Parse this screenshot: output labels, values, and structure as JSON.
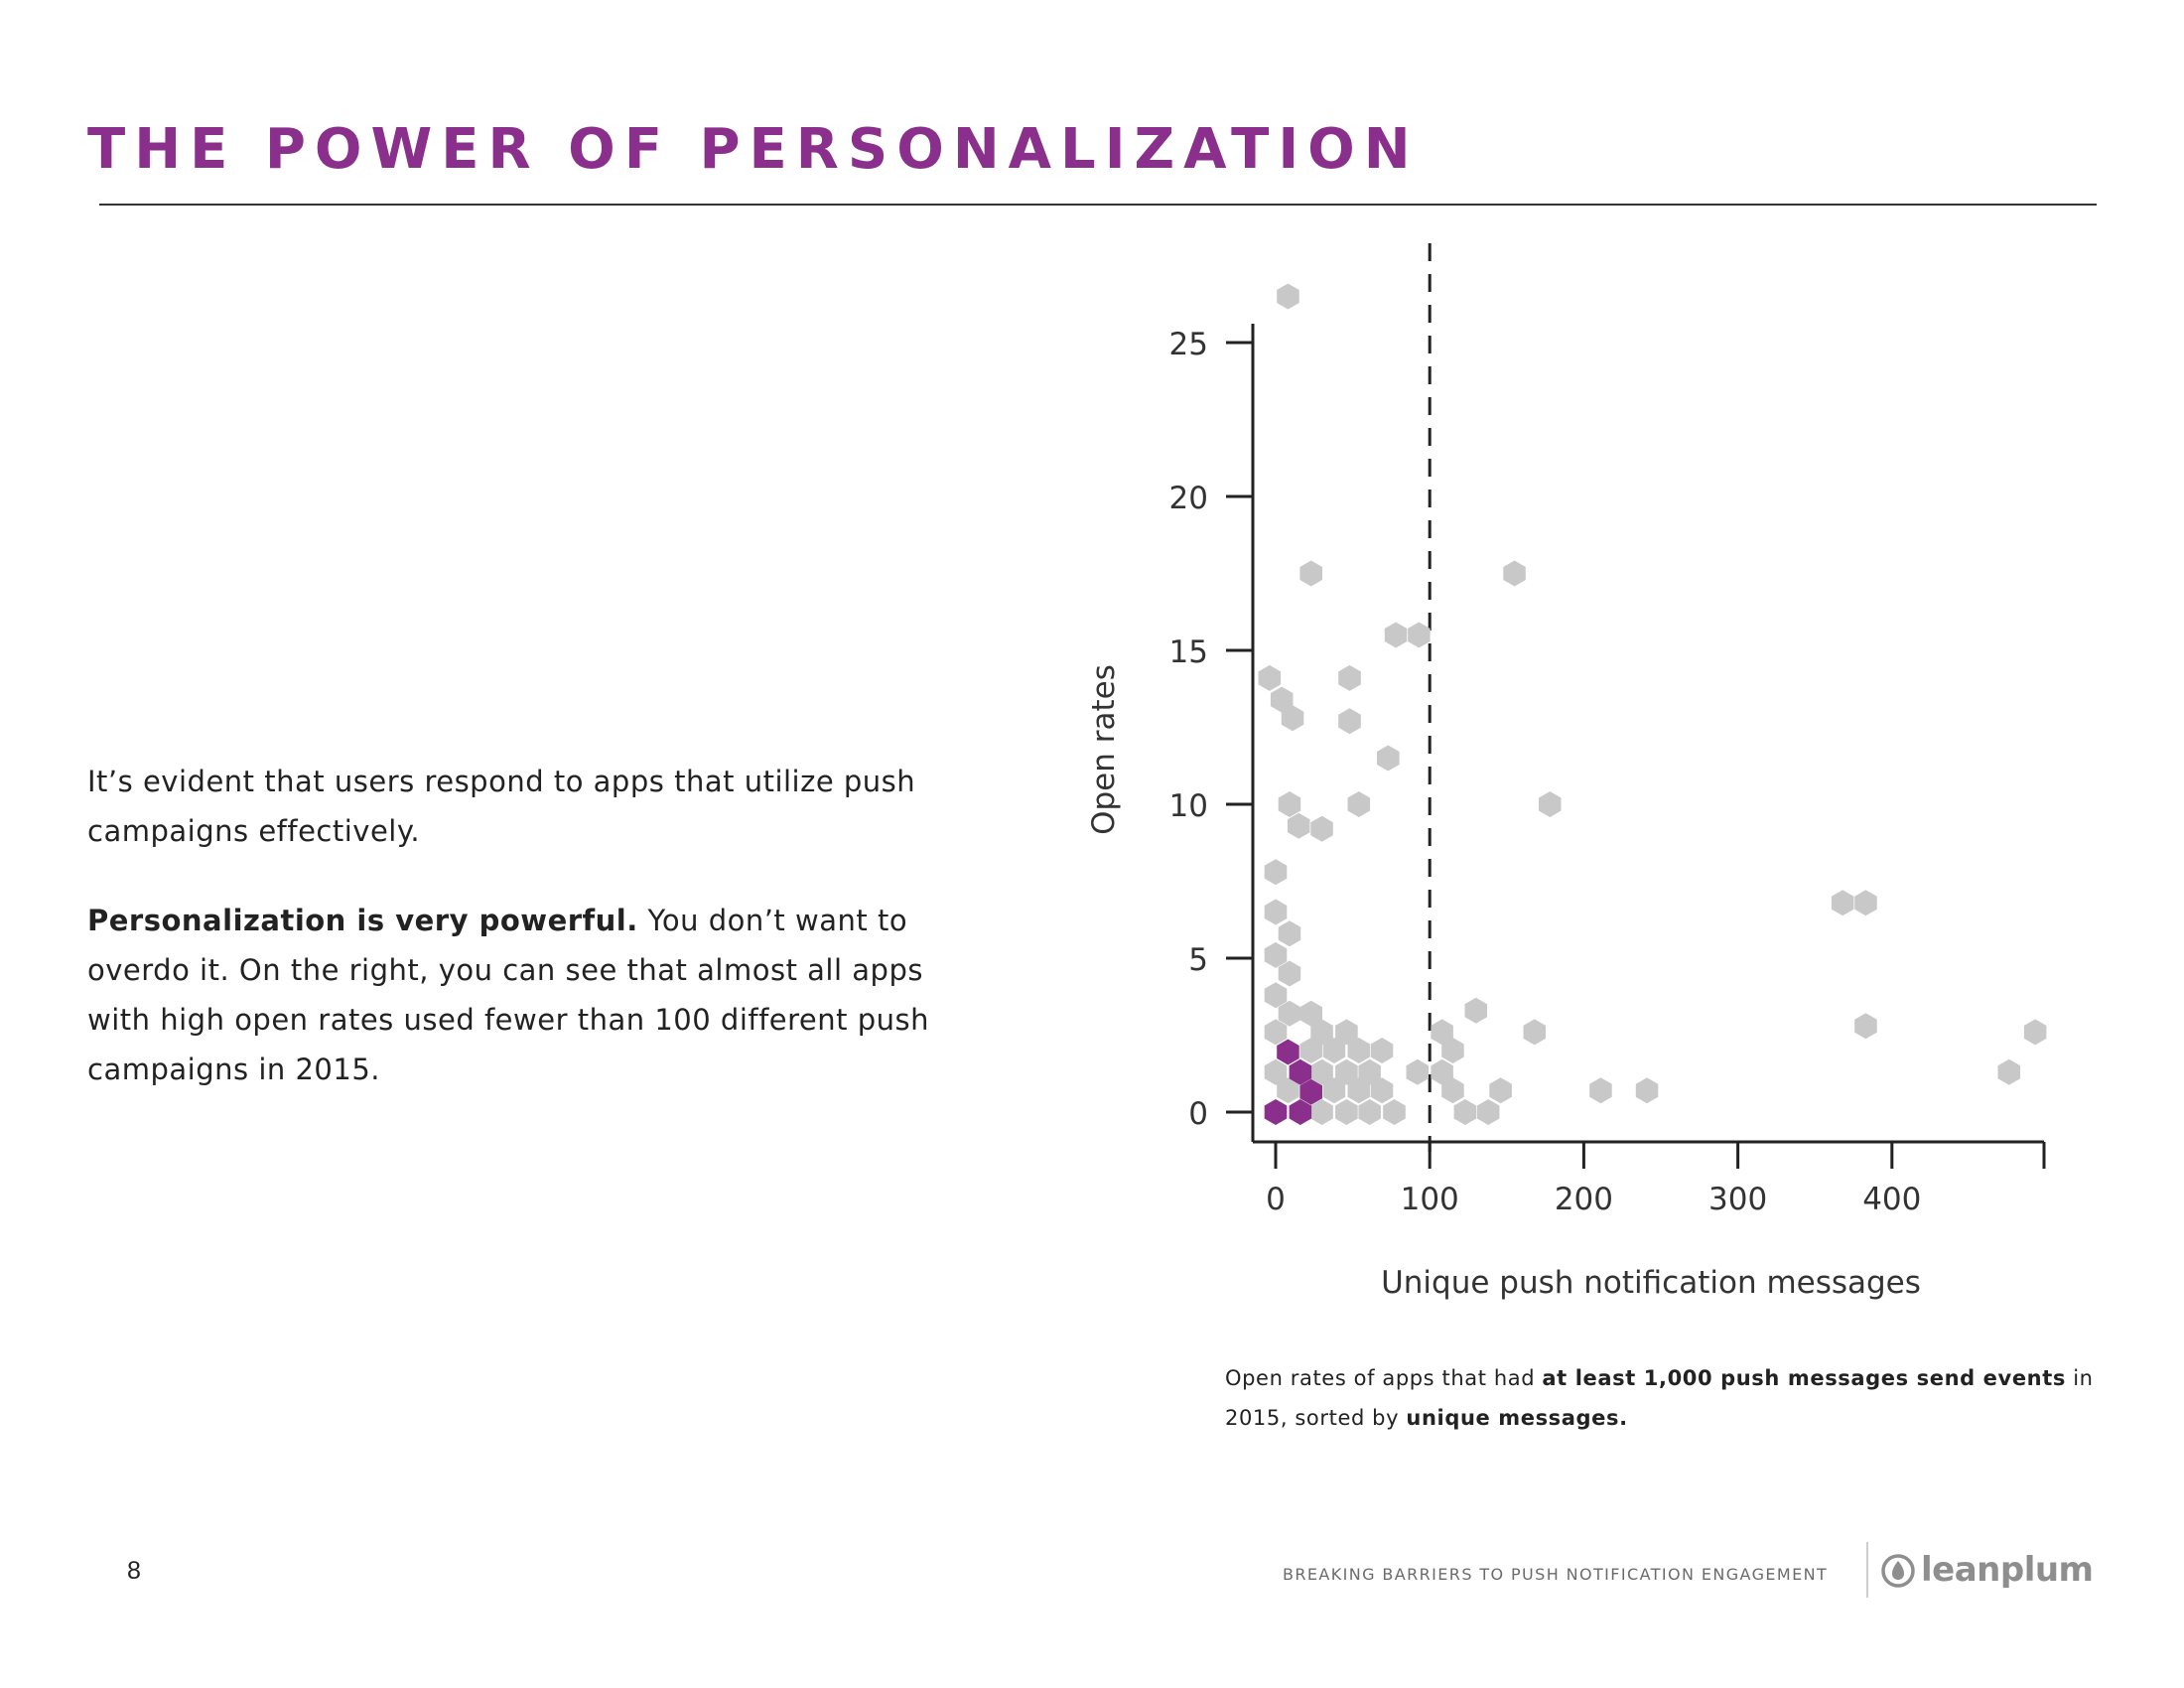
{
  "page": {
    "title": "THE POWER OF PERSONALIZATION",
    "accent_color": "#8a2f8c",
    "page_number": "8"
  },
  "body": {
    "p1": "It’s evident that users respond to apps that utilize push campaigns effectively.",
    "p2_bold": "Personalization is very powerful.",
    "p2_rest": " You don’t want to overdo it. On the right, you can see that almost all apps with high open rates used fewer than 100 different push campaigns in 2015."
  },
  "caption": {
    "part1": "Open rates of apps that had ",
    "bold1": "at least 1,000 push messages send events",
    "part2": " in 2015, sorted by ",
    "bold2": "unique messages."
  },
  "footer": {
    "text": "BREAKING BARRIERS TO PUSH NOTIFICATION ENGAGEMENT",
    "logo_text": "leanplum",
    "logo_icon": "leanplum-drop-icon"
  },
  "chart_data": {
    "type": "hexbin-scatter",
    "xlabel": "Unique push notification messages",
    "ylabel": "Open rates",
    "xlim": [
      -15,
      500
    ],
    "ylim": [
      -1,
      25.5
    ],
    "xticks": [
      0,
      100,
      200,
      300,
      400
    ],
    "yticks": [
      0,
      5,
      10,
      15,
      20,
      25
    ],
    "reference_line": {
      "x": 100,
      "style": "dashed"
    },
    "colors": {
      "low_density": "#c8c8c8",
      "high_density": "#8a2f8c"
    },
    "points": [
      {
        "x": 8,
        "y": 26.5,
        "d": "low"
      },
      {
        "x": 23,
        "y": 17.5,
        "d": "low"
      },
      {
        "x": 155,
        "y": 17.5,
        "d": "low"
      },
      {
        "x": 78,
        "y": 15.5,
        "d": "low"
      },
      {
        "x": 93,
        "y": 15.5,
        "d": "low"
      },
      {
        "x": -4,
        "y": 14.1,
        "d": "low"
      },
      {
        "x": 48,
        "y": 14.1,
        "d": "low"
      },
      {
        "x": 4,
        "y": 13.4,
        "d": "low"
      },
      {
        "x": 11,
        "y": 12.8,
        "d": "low"
      },
      {
        "x": 48,
        "y": 12.7,
        "d": "low"
      },
      {
        "x": 73,
        "y": 11.5,
        "d": "low"
      },
      {
        "x": 9,
        "y": 10.0,
        "d": "low"
      },
      {
        "x": 54,
        "y": 10.0,
        "d": "low"
      },
      {
        "x": 178,
        "y": 10.0,
        "d": "low"
      },
      {
        "x": 15,
        "y": 9.3,
        "d": "low"
      },
      {
        "x": 30,
        "y": 9.2,
        "d": "low"
      },
      {
        "x": 0,
        "y": 7.8,
        "d": "low"
      },
      {
        "x": 368,
        "y": 6.8,
        "d": "low"
      },
      {
        "x": 383,
        "y": 6.8,
        "d": "low"
      },
      {
        "x": 0,
        "y": 6.5,
        "d": "low"
      },
      {
        "x": 9,
        "y": 5.8,
        "d": "low"
      },
      {
        "x": 0,
        "y": 5.1,
        "d": "low"
      },
      {
        "x": 9,
        "y": 4.5,
        "d": "low"
      },
      {
        "x": 0,
        "y": 3.8,
        "d": "low"
      },
      {
        "x": 9,
        "y": 3.2,
        "d": "low"
      },
      {
        "x": 23,
        "y": 3.2,
        "d": "low"
      },
      {
        "x": 130,
        "y": 3.3,
        "d": "low"
      },
      {
        "x": 0,
        "y": 2.6,
        "d": "low"
      },
      {
        "x": 30,
        "y": 2.6,
        "d": "low"
      },
      {
        "x": 46,
        "y": 2.6,
        "d": "low"
      },
      {
        "x": 108,
        "y": 2.6,
        "d": "low"
      },
      {
        "x": 168,
        "y": 2.6,
        "d": "low"
      },
      {
        "x": 383,
        "y": 2.8,
        "d": "low"
      },
      {
        "x": 493,
        "y": 2.6,
        "d": "low"
      },
      {
        "x": 23,
        "y": 2.0,
        "d": "low"
      },
      {
        "x": 38,
        "y": 2.0,
        "d": "low"
      },
      {
        "x": 54,
        "y": 2.0,
        "d": "low"
      },
      {
        "x": 69,
        "y": 2.0,
        "d": "low"
      },
      {
        "x": 115,
        "y": 2.0,
        "d": "low"
      },
      {
        "x": 0,
        "y": 1.3,
        "d": "low"
      },
      {
        "x": 30,
        "y": 1.3,
        "d": "low"
      },
      {
        "x": 46,
        "y": 1.3,
        "d": "low"
      },
      {
        "x": 61,
        "y": 1.3,
        "d": "low"
      },
      {
        "x": 92,
        "y": 1.3,
        "d": "low"
      },
      {
        "x": 108,
        "y": 1.3,
        "d": "low"
      },
      {
        "x": 476,
        "y": 1.3,
        "d": "low"
      },
      {
        "x": 8,
        "y": 0.7,
        "d": "low"
      },
      {
        "x": 38,
        "y": 0.7,
        "d": "low"
      },
      {
        "x": 54,
        "y": 0.7,
        "d": "low"
      },
      {
        "x": 69,
        "y": 0.7,
        "d": "low"
      },
      {
        "x": 115,
        "y": 0.7,
        "d": "low"
      },
      {
        "x": 146,
        "y": 0.7,
        "d": "low"
      },
      {
        "x": 211,
        "y": 0.7,
        "d": "low"
      },
      {
        "x": 241,
        "y": 0.7,
        "d": "low"
      },
      {
        "x": 30,
        "y": 0.0,
        "d": "low"
      },
      {
        "x": 46,
        "y": 0.0,
        "d": "low"
      },
      {
        "x": 61,
        "y": 0.0,
        "d": "low"
      },
      {
        "x": 77,
        "y": 0.0,
        "d": "low"
      },
      {
        "x": 123,
        "y": 0.0,
        "d": "low"
      },
      {
        "x": 138,
        "y": 0.0,
        "d": "low"
      },
      {
        "x": 8,
        "y": 1.95,
        "d": "high"
      },
      {
        "x": 16,
        "y": 1.3,
        "d": "high"
      },
      {
        "x": 23,
        "y": 0.65,
        "d": "high"
      },
      {
        "x": 0,
        "y": 0.0,
        "d": "high"
      },
      {
        "x": 16,
        "y": 0.0,
        "d": "high"
      }
    ]
  }
}
